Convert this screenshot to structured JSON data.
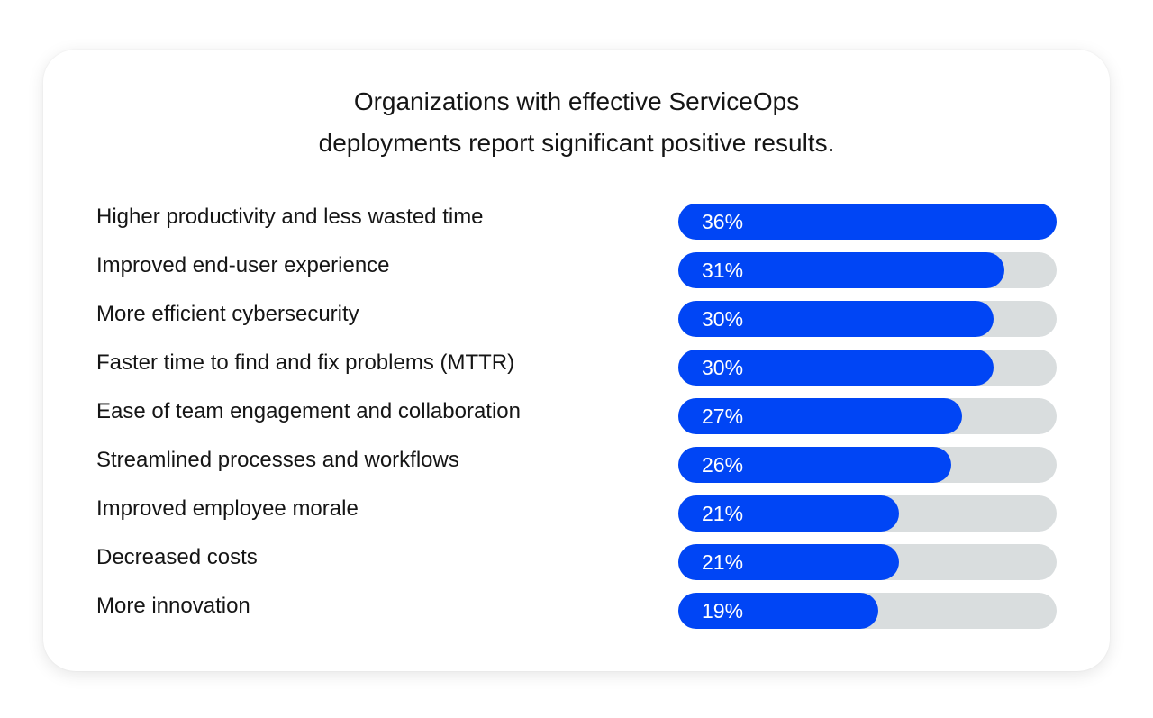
{
  "chart_data": {
    "type": "bar",
    "orientation": "horizontal",
    "title": "Organizations with effective ServiceOps deployments report significant positive results.",
    "title_lines": [
      "Organizations with effective ServiceOps",
      "deployments report significant positive results."
    ],
    "categories": [
      "Higher productivity and less wasted time",
      "Improved end-user experience",
      "More efficient cybersecurity",
      "Faster time to find and fix problems (MTTR)",
      "Ease of team engagement and collaboration",
      "Streamlined processes and workflows",
      "Improved employee morale",
      "Decreased costs",
      "More innovation"
    ],
    "values": [
      36,
      31,
      30,
      30,
      27,
      26,
      21,
      21,
      19
    ],
    "data_labels": [
      "36%",
      "31%",
      "30%",
      "30%",
      "27%",
      "26%",
      "21%",
      "21%",
      "19%"
    ],
    "xlim": [
      0,
      36
    ],
    "grid": false,
    "colors": {
      "bar": "#0045f5",
      "track": "#d9ddde",
      "label": "#ffffff"
    }
  }
}
